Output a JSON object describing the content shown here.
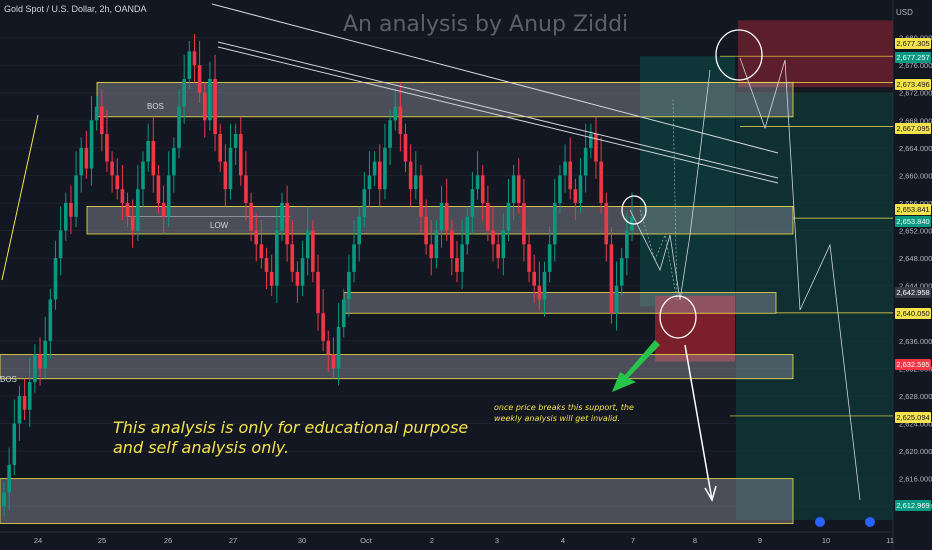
{
  "header": {
    "symbol": "Gold Spot / U.S. Dollar, 2h, OANDA",
    "currency": "USD"
  },
  "watermark": "An analysis by Anup Ziddi",
  "notes": {
    "main": "This analysis is only for educational purpose and self analysis only.",
    "small": "once price breaks this support, the weekly analysis will get invalid."
  },
  "labels": {
    "bos_top": "BOS",
    "bos_left": "BOS",
    "low": "LOW"
  },
  "colors": {
    "background": "#131722",
    "up": "#089981",
    "down": "#f23645",
    "zone": "#f5e34b",
    "note": "#f5e34b",
    "arrow": "#27c44a"
  },
  "chart_data": {
    "type": "candlestick",
    "title": "Gold Spot / U.S. Dollar, 2h, OANDA",
    "ylim": [
      2610,
      2684
    ],
    "y_ticks": [
      2612,
      2616,
      2620,
      2624,
      2628,
      2632,
      2636,
      2644,
      2648,
      2652,
      2656,
      2660,
      2664,
      2668,
      2672,
      2676,
      2680
    ],
    "x_ticks": [
      "24",
      "25",
      "26",
      "27",
      "30",
      "Oct",
      "2",
      "3",
      "4",
      "7",
      "8",
      "9",
      "10",
      "11"
    ],
    "price_tags": [
      {
        "value": "2,677.305",
        "color": "#f5e34b"
      },
      {
        "value": "2,677.257",
        "color": "#089981"
      },
      {
        "value": "2,673.496",
        "color": "#f5e34b"
      },
      {
        "value": "2,667.095",
        "color": "#f5e34b"
      },
      {
        "value": "2,653.841",
        "color": "#f5e34b"
      },
      {
        "value": "2,653.840",
        "color": "#089981"
      },
      {
        "value": "2,642.958",
        "color": "#363a45"
      },
      {
        "value": "2,640.050",
        "color": "#f5e34b"
      },
      {
        "value": "2,632.595",
        "color": "#f23645"
      },
      {
        "value": "2,625.094",
        "color": "#f5e34b"
      },
      {
        "value": "2,612.969",
        "color": "#089981"
      }
    ],
    "zones": [
      {
        "name": "zone-2670",
        "from": 2668.5,
        "to": 2673.5
      },
      {
        "name": "zone-2654",
        "from": 2651.5,
        "to": 2655.5
      },
      {
        "name": "zone-2640",
        "from": 2640.0,
        "to": 2643.0
      },
      {
        "name": "zone-2630",
        "from": 2630.5,
        "to": 2634.0
      },
      {
        "name": "zone-2612",
        "from": 2609.5,
        "to": 2616.0
      }
    ],
    "candles_close": [
      2614,
      2618,
      2624,
      2628,
      2626,
      2630,
      2634,
      2632,
      2636,
      2642,
      2648,
      2652,
      2656,
      2654,
      2660,
      2664,
      2661,
      2668,
      2670,
      2666,
      2662,
      2660,
      2658,
      2656,
      2654,
      2652,
      2658,
      2662,
      2665,
      2660,
      2656,
      2654,
      2660,
      2664,
      2670,
      2674,
      2678,
      2676,
      2672,
      2668,
      2674,
      2666,
      2662,
      2658,
      2664,
      2666,
      2660,
      2656,
      2652,
      2650,
      2648,
      2646,
      2644,
      2652,
      2656,
      2650,
      2646,
      2644,
      2648,
      2652,
      2646,
      2640,
      2636,
      2634,
      2632,
      2638,
      2642,
      2646,
      2650,
      2654,
      2658,
      2660,
      2662,
      2658,
      2664,
      2668,
      2670,
      2666,
      2662,
      2658,
      2660,
      2654,
      2650,
      2648,
      2652,
      2656,
      2652,
      2648,
      2646,
      2650,
      2654,
      2658,
      2660,
      2656,
      2652,
      2650,
      2648,
      2652,
      2656,
      2660,
      2656,
      2650,
      2646,
      2644,
      2642,
      2646,
      2650,
      2656,
      2660,
      2662,
      2658,
      2656,
      2660,
      2664,
      2666,
      2662,
      2656,
      2650,
      2640,
      2644,
      2648,
      2652,
      2654
    ]
  }
}
